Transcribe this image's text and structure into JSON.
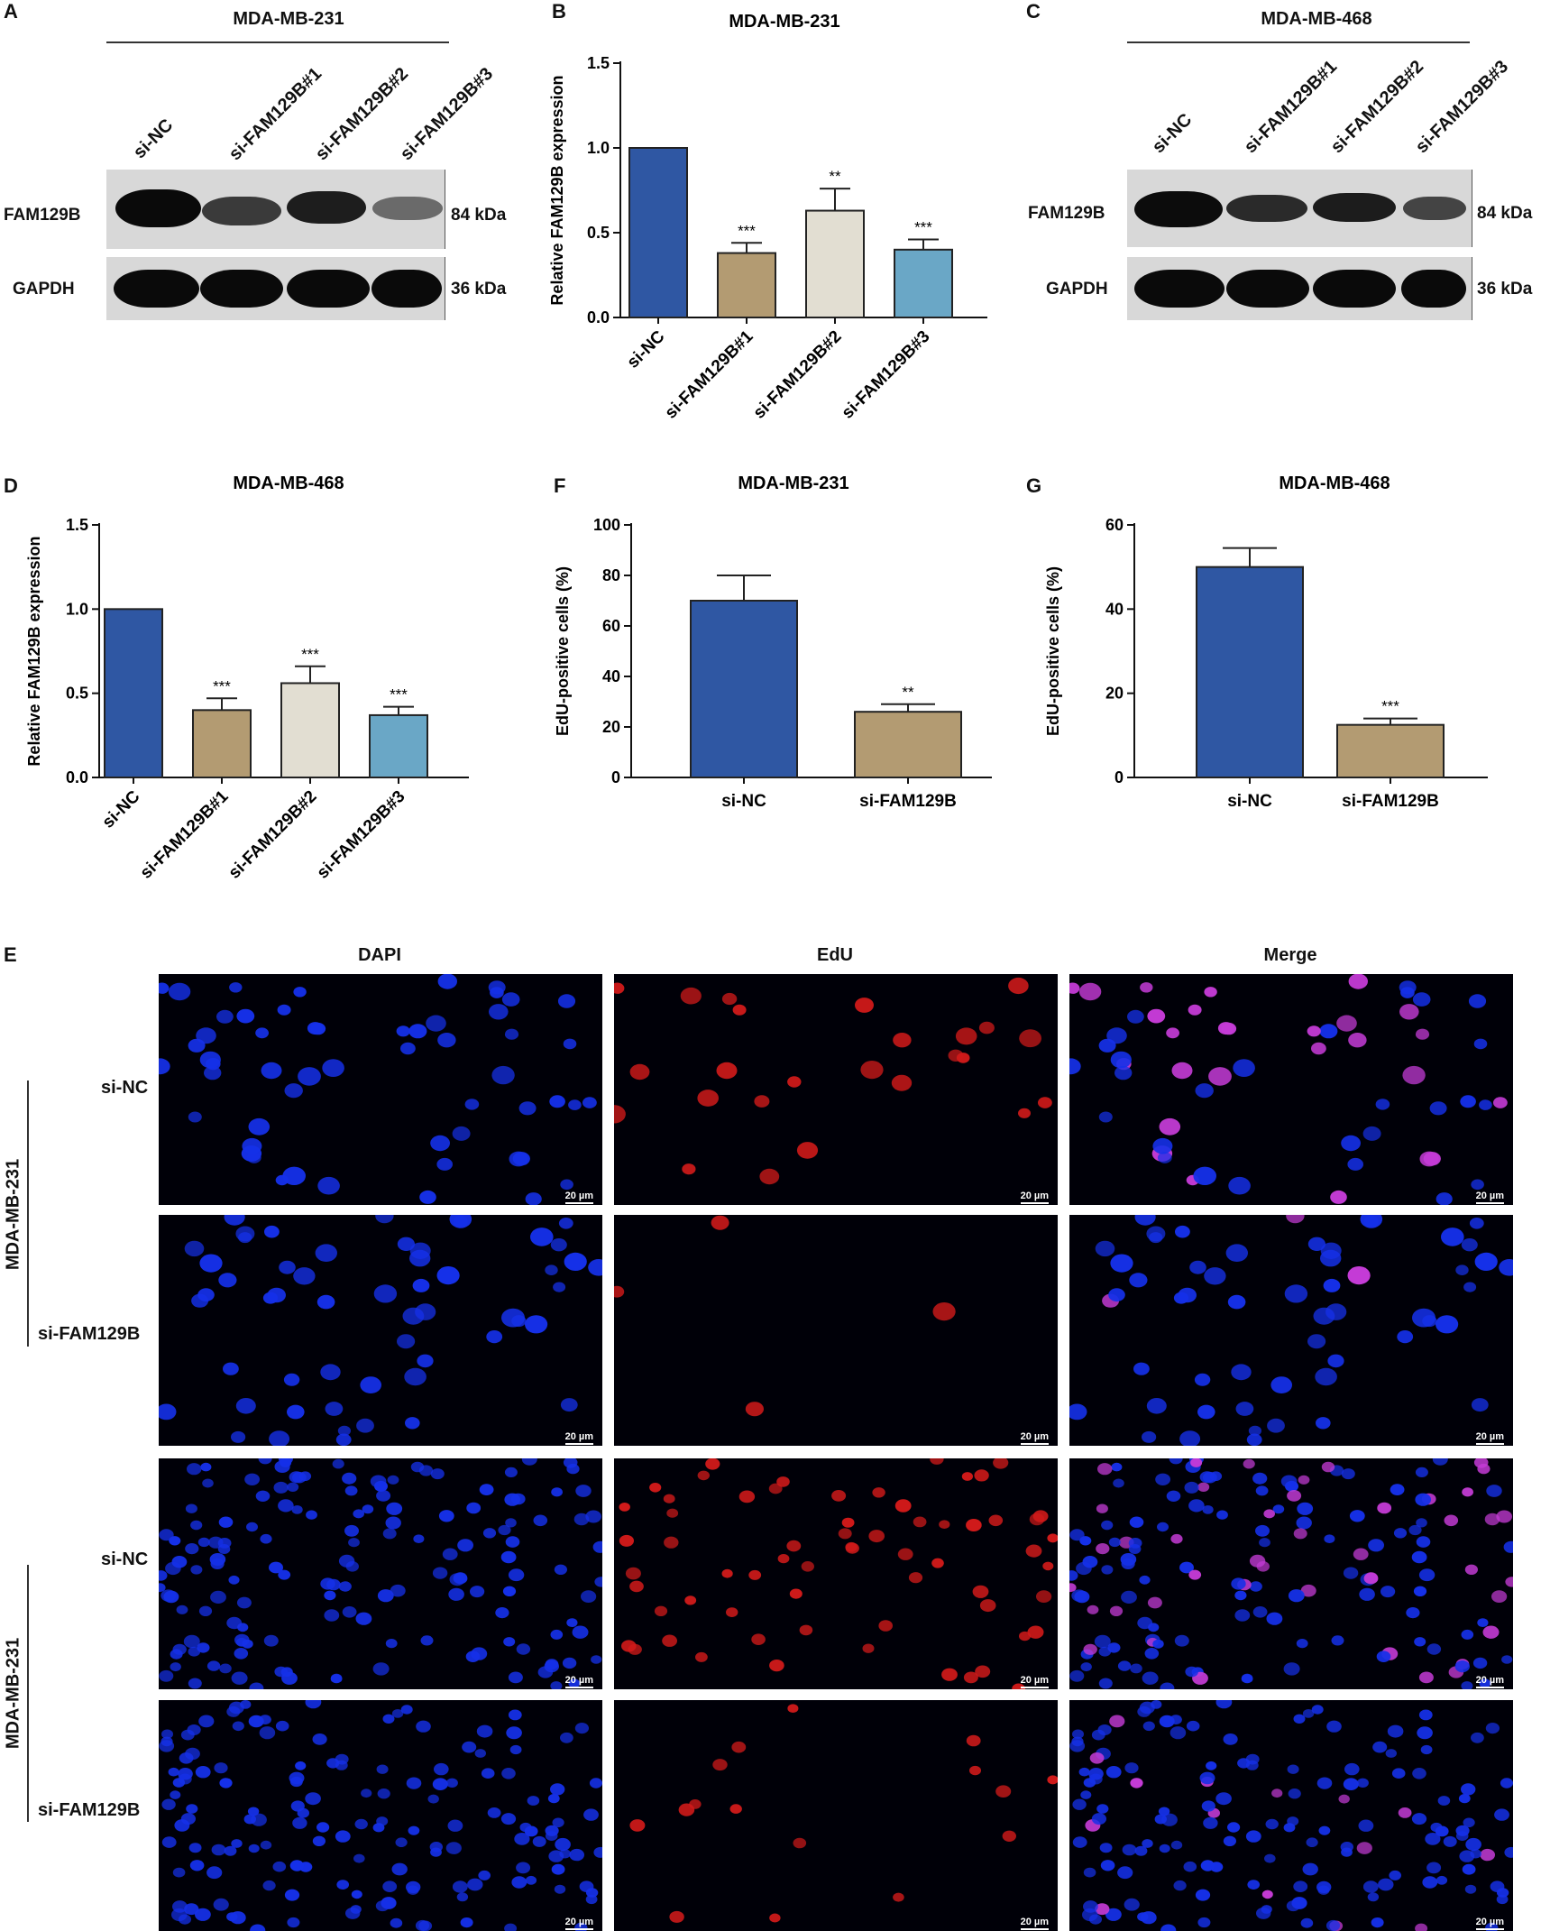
{
  "panels": {
    "A": {
      "letter": "A",
      "title": "MDA-MB-231",
      "lanes": [
        "si-NC",
        "si-FAM129B#1",
        "si-FAM129B#2",
        "si-FAM129B#3"
      ],
      "rows": [
        {
          "label": "FAM129B",
          "kda": "84 kDa"
        },
        {
          "label": "GAPDH",
          "kda": "36 kDa"
        }
      ]
    },
    "B": {
      "letter": "B"
    },
    "C": {
      "letter": "C",
      "title": "MDA-MB-468",
      "lanes": [
        "si-NC",
        "si-FAM129B#1",
        "si-FAM129B#2",
        "si-FAM129B#3"
      ],
      "rows": [
        {
          "label": "FAM129B",
          "kda": "84 kDa"
        },
        {
          "label": "GAPDH",
          "kda": "36 kDa"
        }
      ]
    },
    "D": {
      "letter": "D"
    },
    "F": {
      "letter": "F"
    },
    "G": {
      "letter": "G"
    },
    "E": {
      "letter": "E",
      "columns": [
        "DAPI",
        "EdU",
        "Merge"
      ],
      "groups": [
        {
          "cell_line": "MDA-MB-231",
          "rows": [
            "si-NC",
            "si-FAM129B"
          ]
        },
        {
          "cell_line": "MDA-MB-231",
          "rows": [
            "si-NC",
            "si-FAM129B"
          ]
        }
      ],
      "scale_bar": "20 µm"
    }
  },
  "colors": {
    "nc": "#2f57a3",
    "kd1": "#b39b72",
    "kd2": "#e2ded2",
    "kd3": "#6aa7c6"
  },
  "chart_data": [
    {
      "id": "B",
      "type": "bar",
      "title": "MDA-MB-231",
      "ylabel": "Relative FAM129B expression",
      "categories": [
        "si-NC",
        "si-FAM129B#1",
        "si-FAM129B#2",
        "si-FAM129B#3"
      ],
      "values": [
        1.0,
        0.38,
        0.63,
        0.4
      ],
      "errors": [
        0,
        0.06,
        0.13,
        0.06
      ],
      "sig": [
        "",
        "***",
        "**",
        "***"
      ],
      "ylim": [
        0,
        1.5
      ],
      "yticks": [
        "0.0",
        "0.5",
        "1.0",
        "1.5"
      ]
    },
    {
      "id": "D",
      "type": "bar",
      "title": "MDA-MB-468",
      "ylabel": "Relative FAM129B expression",
      "categories": [
        "si-NC",
        "si-FAM129B#1",
        "si-FAM129B#2",
        "si-FAM129B#3"
      ],
      "values": [
        1.0,
        0.4,
        0.56,
        0.37
      ],
      "errors": [
        0,
        0.07,
        0.1,
        0.05
      ],
      "sig": [
        "",
        "***",
        "***",
        "***"
      ],
      "ylim": [
        0,
        1.5
      ],
      "yticks": [
        "0.0",
        "0.5",
        "1.0",
        "1.5"
      ]
    },
    {
      "id": "F",
      "type": "bar",
      "title": "MDA-MB-231",
      "ylabel": "EdU-positive cells (%)",
      "categories": [
        "si-NC",
        "si-FAM129B"
      ],
      "values": [
        70,
        26
      ],
      "errors": [
        10,
        3
      ],
      "sig": [
        "",
        "**"
      ],
      "ylim": [
        0,
        100
      ],
      "yticks": [
        "0",
        "20",
        "40",
        "60",
        "80",
        "100"
      ]
    },
    {
      "id": "G",
      "type": "bar",
      "title": "MDA-MB-468",
      "ylabel": "EdU-positive cells (%)",
      "categories": [
        "si-NC",
        "si-FAM129B"
      ],
      "values": [
        50,
        12.5
      ],
      "errors": [
        4.5,
        1.5
      ],
      "sig": [
        "",
        "***"
      ],
      "ylim": [
        0,
        60
      ],
      "yticks": [
        "0",
        "20",
        "40",
        "60"
      ]
    }
  ]
}
